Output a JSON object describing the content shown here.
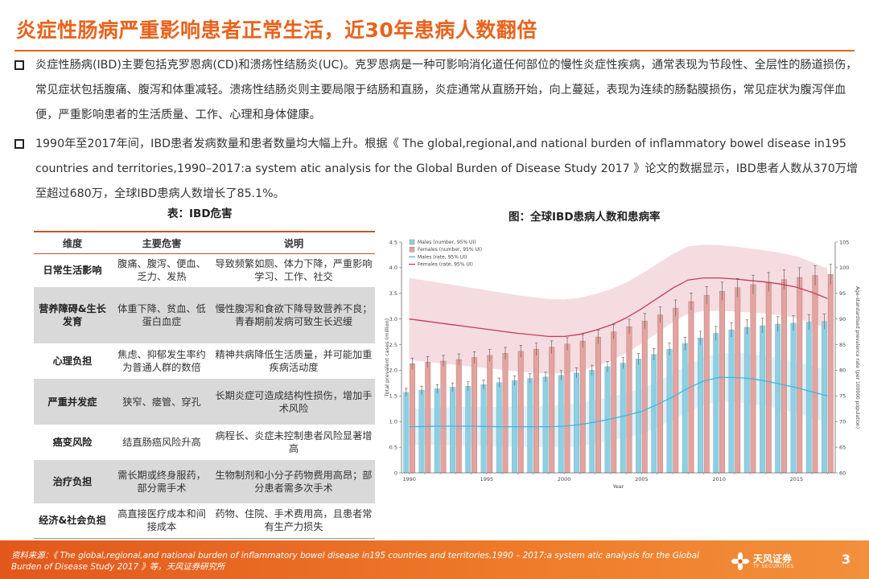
{
  "title": "炎症性肠病严重影响患者正常生活，近30年患病人数翻倍",
  "bullets": [
    "炎症性肠病(IBD)主要包括克罗恩病(CD)和溃疡性结肠炎(UC)。克罗恩病是一种可影响消化道任何部位的慢性炎症性疾病，通常表现为节段性、全层性的肠道损伤，常见症状包括腹痛、腹泻和体重减轻。溃疡性结肠炎则主要局限于结肠和直肠，炎症通常从直肠开始，向上蔓延，表现为连续的肠黏膜损伤，常见症状为腹泻伴血便，严重影响患者的生活质量、工作、心理和身体健康。",
    "1990年至2017年间，IBD患者发病数量和患者数量均大幅上升。根据《 The global,regional,and national burden of inflammatory bowel disease in195 countries and territories,1990–2017:a system atic analysis for the Global Burden of Disease Study 2017 》论文的数据显示，IBD患者人数从370万增至超过680万，全球IBD患病人数增长了85.1%。"
  ],
  "table": {
    "caption": "表：IBD危害",
    "headers": [
      "维度",
      "主要危害",
      "说明"
    ],
    "rows": [
      [
        "日常生活影响",
        "腹痛、腹泻、便血、乏力、发热",
        "导致频繁如厕、体力下降，严重影响学习、工作、社交"
      ],
      [
        "营养障碍&生长发育",
        "体重下降、贫血、低蛋白血症",
        "慢性腹泻和食欲下降导致营养不良；青春期前发病可致生长迟缓"
      ],
      [
        "心理负担",
        "焦虑、抑郁发生率约为普通人群的数倍",
        "精神共病降低生活质量，并可能加重疾病活动度"
      ],
      [
        "严重并发症",
        "狭窄、瘘管、穿孔",
        "长期炎症可造成结构性损伤，增加手术风险"
      ],
      [
        "癌变风险",
        "结直肠癌风险升高",
        "病程长、炎症未控制患者风险显著增高"
      ],
      [
        "治疗负担",
        "需长期或终身服药，部分需手术",
        "生物制剂和小分子药物费用高昂；部分患者需多次手术"
      ],
      [
        "经济&社会负担",
        "高直接医疗成本和间接成本",
        "药物、住院、手术费用高，且患者常有生产力损失"
      ]
    ]
  },
  "chart_data": {
    "type": "bar",
    "title": "图：全球IBD患病人数和患病率",
    "xlabel": "Year",
    "ylabel": "Total prevalent cases (million)",
    "ylabel_right": "Age-standardised prevalence rate (per 100000 population)",
    "ylim": [
      0,
      4.5
    ],
    "ylim_right": [
      60,
      105
    ],
    "yticks": [
      "0",
      "0.5",
      "1.0",
      "1.5",
      "2.0",
      "2.5",
      "3.0",
      "3.5",
      "4.0",
      "4.5"
    ],
    "yticks_right": [
      "60",
      "65",
      "70",
      "75",
      "80",
      "85",
      "90",
      "95",
      "100",
      "105"
    ],
    "x": [
      1990,
      1991,
      1992,
      1993,
      1994,
      1995,
      1996,
      1997,
      1998,
      1999,
      2000,
      2001,
      2002,
      2003,
      2004,
      2005,
      2006,
      2007,
      2008,
      2009,
      2010,
      2011,
      2012,
      2013,
      2014,
      2015,
      2016,
      2017
    ],
    "xticks": [
      "1990",
      "1995",
      "2000",
      "2005",
      "2010",
      "2015"
    ],
    "legend": [
      "Males (number, 95% UI)",
      "Females (number, 95% UI)",
      "Males (rate, 95% UI)",
      "Females (rate, 95% UI)"
    ],
    "series": [
      {
        "name": "Males (number, 95% UI)",
        "kind": "bar",
        "color": "#8ecfe3",
        "values": [
          1.57,
          1.61,
          1.64,
          1.67,
          1.69,
          1.72,
          1.76,
          1.8,
          1.84,
          1.87,
          1.9,
          1.95,
          2.0,
          2.07,
          2.14,
          2.22,
          2.31,
          2.41,
          2.52,
          2.63,
          2.72,
          2.79,
          2.84,
          2.87,
          2.9,
          2.92,
          2.94,
          2.95
        ]
      },
      {
        "name": "Females (number, 95% UI)",
        "kind": "bar",
        "color": "#e3a39e",
        "values": [
          2.13,
          2.16,
          2.18,
          2.21,
          2.25,
          2.29,
          2.33,
          2.37,
          2.41,
          2.45,
          2.51,
          2.57,
          2.65,
          2.75,
          2.85,
          2.96,
          3.08,
          3.21,
          3.34,
          3.46,
          3.54,
          3.61,
          3.67,
          3.72,
          3.77,
          3.81,
          3.85,
          3.87
        ]
      },
      {
        "name": "Males (rate, 95% UI)",
        "kind": "line",
        "color": "#41b6d8",
        "values": [
          69,
          69.05,
          69.1,
          69.1,
          69.1,
          69.05,
          69,
          69,
          69,
          69,
          69.1,
          69.4,
          69.9,
          70.5,
          71.2,
          72.0,
          73.3,
          74.8,
          76.5,
          77.9,
          78.6,
          78.6,
          78.4,
          77.9,
          77.3,
          76.6,
          75.8,
          75
        ]
      },
      {
        "name": "Females (rate, 95% UI)",
        "kind": "line",
        "color": "#c43d56",
        "values": [
          90,
          89.6,
          89.2,
          88.8,
          88.4,
          88.0,
          87.6,
          87.2,
          86.9,
          86.6,
          86.6,
          87.0,
          87.8,
          88.8,
          90.2,
          92.0,
          94.0,
          96.0,
          97.6,
          98.0,
          98.0,
          97.8,
          97.5,
          97.2,
          96.8,
          96.2,
          95.2,
          94
        ]
      }
    ]
  },
  "footer": {
    "source": "资料来源：《 The global,regional,and national burden of inflammatory bowel disease in195 countries and territories,1990 – 2017:a system atic analysis for the Global Burden of Disease Study 2017 》等，天风证券研究所",
    "logo_name": "天风证券",
    "logo_en": "TF SECURITIES",
    "page": "3"
  }
}
